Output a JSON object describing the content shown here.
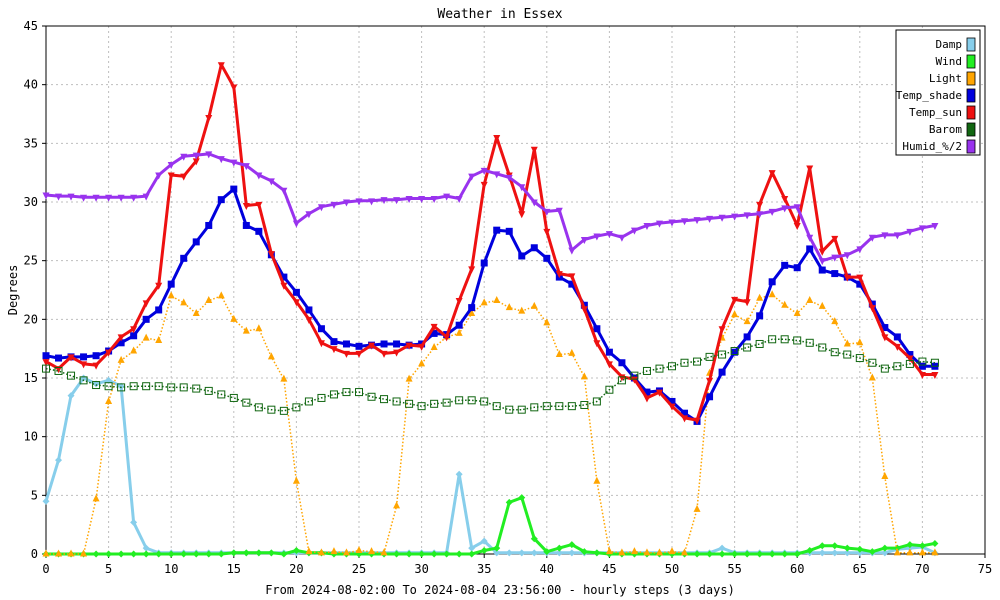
{
  "chart_data": {
    "type": "line",
    "title": "Weather in Essex",
    "xlabel": "From 2024-08-02:00 To 2024-08-04 23:56:00 - hourly steps (3 days)",
    "ylabel": "Degrees",
    "xlim": [
      0,
      75
    ],
    "ylim": [
      0,
      45
    ],
    "xticks": [
      0,
      5,
      10,
      15,
      20,
      25,
      30,
      35,
      40,
      45,
      50,
      55,
      60,
      65,
      70,
      75
    ],
    "yticks": [
      0,
      5,
      10,
      15,
      20,
      25,
      30,
      35,
      40,
      45
    ],
    "grid": true,
    "legend_position": "top-right",
    "series": [
      {
        "name": "Damp",
        "color": "#87ceeb",
        "marker": "diamond",
        "dash": "solid",
        "width": 3,
        "x": [
          0,
          1,
          2,
          3,
          4,
          5,
          6,
          7,
          8,
          9,
          10,
          11,
          12,
          13,
          14,
          15,
          16,
          17,
          18,
          19,
          20,
          21,
          22,
          23,
          24,
          25,
          26,
          27,
          28,
          29,
          30,
          31,
          32,
          33,
          34,
          35,
          36,
          37,
          38,
          39,
          40,
          41,
          42,
          43,
          44,
          45,
          46,
          47,
          48,
          49,
          50,
          51,
          52,
          53,
          54,
          55,
          56,
          57,
          58,
          59,
          60,
          61,
          62,
          63,
          64,
          65,
          66,
          67,
          68,
          69,
          70,
          71
        ],
        "values": [
          4.5,
          8.0,
          13.5,
          15.0,
          14.5,
          14.8,
          14.3,
          2.7,
          0.5,
          0.1,
          0.1,
          0.1,
          0.1,
          0.1,
          0.1,
          0.1,
          0.1,
          0.1,
          0.1,
          0.1,
          0.1,
          0.1,
          0.1,
          0.1,
          0.1,
          0.1,
          0.1,
          0.1,
          0.1,
          0.1,
          0.1,
          0.1,
          0.1,
          6.8,
          0.5,
          1.1,
          0.1,
          0.1,
          0.1,
          0.1,
          0.1,
          0.1,
          0.1,
          0.1,
          0.1,
          0.1,
          0.1,
          0.1,
          0.1,
          0.1,
          0.1,
          0.1,
          0.1,
          0.1,
          0.5,
          0.1,
          0.1,
          0.1,
          0.1,
          0.1,
          0.1,
          0.1,
          0.1,
          0.1,
          0.1,
          0.1,
          0.1,
          0.1,
          0.4,
          0.5,
          0.6,
          0.1
        ]
      },
      {
        "name": "Wind",
        "color": "#22ee22",
        "marker": "diamond",
        "dash": "solid",
        "width": 3,
        "x": [
          0,
          1,
          2,
          3,
          4,
          5,
          6,
          7,
          8,
          9,
          10,
          11,
          12,
          13,
          14,
          15,
          16,
          17,
          18,
          19,
          20,
          21,
          22,
          23,
          24,
          25,
          26,
          27,
          28,
          29,
          30,
          31,
          32,
          33,
          34,
          35,
          36,
          37,
          38,
          39,
          40,
          41,
          42,
          43,
          44,
          45,
          46,
          47,
          48,
          49,
          50,
          51,
          52,
          53,
          54,
          55,
          56,
          57,
          58,
          59,
          60,
          61,
          62,
          63,
          64,
          65,
          66,
          67,
          68,
          69,
          70,
          71
        ],
        "values": [
          0,
          0,
          0,
          0,
          0,
          0,
          0,
          0,
          0,
          0,
          0,
          0,
          0,
          0,
          0,
          0.1,
          0.1,
          0.1,
          0.1,
          0,
          0.3,
          0.1,
          0.1,
          0,
          0,
          0,
          0,
          0,
          0,
          0,
          0,
          0,
          0,
          0,
          0,
          0.3,
          0.5,
          4.4,
          4.8,
          1.3,
          0.2,
          0.5,
          0.8,
          0.2,
          0.1,
          0,
          0,
          0,
          0,
          0,
          0,
          0,
          0,
          0,
          0,
          0,
          0,
          0,
          0,
          0,
          0,
          0.3,
          0.7,
          0.7,
          0.5,
          0.4,
          0.2,
          0.5,
          0.5,
          0.8,
          0.7,
          0.9
        ]
      },
      {
        "name": "Light",
        "color": "#ffa500",
        "marker": "triangle",
        "dash": "dotted",
        "width": 1.5,
        "x": [
          0,
          1,
          2,
          3,
          4,
          5,
          6,
          7,
          8,
          9,
          10,
          11,
          12,
          13,
          14,
          15,
          16,
          17,
          18,
          19,
          20,
          21,
          22,
          23,
          24,
          25,
          26,
          27,
          28,
          29,
          30,
          31,
          32,
          33,
          34,
          35,
          36,
          37,
          38,
          39,
          40,
          41,
          42,
          43,
          44,
          45,
          46,
          47,
          48,
          49,
          50,
          51,
          52,
          53,
          54,
          55,
          56,
          57,
          58,
          59,
          60,
          61,
          62,
          63,
          64,
          65,
          66,
          67,
          68,
          69,
          70,
          71
        ],
        "values": [
          0,
          0,
          0,
          0,
          4.7,
          13.0,
          16.5,
          17.3,
          18.4,
          18.2,
          22.0,
          21.4,
          20.5,
          21.6,
          22.0,
          20.0,
          19.0,
          19.2,
          16.8,
          14.9,
          6.2,
          0.2,
          0.1,
          0.2,
          0.1,
          0.3,
          0.2,
          0.1,
          4.1,
          14.9,
          16.2,
          17.6,
          18.5,
          18.8,
          20.5,
          21.4,
          21.6,
          21.0,
          20.7,
          21.1,
          19.7,
          17.0,
          17.1,
          15.1,
          6.2,
          0.2,
          0.1,
          0.2,
          0.1,
          0.1,
          0.2,
          0.1,
          3.8,
          15.4,
          18.4,
          20.4,
          19.8,
          21.8,
          22.1,
          21.2,
          20.5,
          21.6,
          21.1,
          19.8,
          17.9,
          18.0,
          15.0,
          6.6,
          0.1,
          0.1,
          0.1,
          0.1
        ]
      },
      {
        "name": "Temp_shade",
        "color": "#0000dd",
        "marker": "square",
        "dash": "solid",
        "width": 3,
        "x": [
          0,
          1,
          2,
          3,
          4,
          5,
          6,
          7,
          8,
          9,
          10,
          11,
          12,
          13,
          14,
          15,
          16,
          17,
          18,
          19,
          20,
          21,
          22,
          23,
          24,
          25,
          26,
          27,
          28,
          29,
          30,
          31,
          32,
          33,
          34,
          35,
          36,
          37,
          38,
          39,
          40,
          41,
          42,
          43,
          44,
          45,
          46,
          47,
          48,
          49,
          50,
          51,
          52,
          53,
          54,
          55,
          56,
          57,
          58,
          59,
          60,
          61,
          62,
          63,
          64,
          65,
          66,
          67,
          68,
          69,
          70,
          71
        ],
        "values": [
          16.9,
          16.7,
          16.8,
          16.8,
          16.9,
          17.3,
          18.0,
          18.6,
          20.0,
          20.8,
          23.0,
          25.2,
          26.6,
          28.0,
          30.2,
          31.1,
          28.0,
          27.5,
          25.5,
          23.6,
          22.3,
          20.8,
          19.2,
          18.1,
          17.9,
          17.7,
          17.8,
          17.9,
          17.9,
          17.8,
          17.9,
          18.8,
          18.7,
          19.5,
          21.0,
          24.8,
          27.6,
          27.5,
          25.4,
          26.1,
          25.2,
          23.6,
          23.0,
          21.2,
          19.2,
          17.2,
          16.3,
          15.0,
          13.8,
          13.9,
          13.0,
          12.0,
          11.3,
          13.4,
          15.5,
          17.2,
          18.5,
          20.3,
          23.2,
          24.6,
          24.4,
          26.0,
          24.2,
          23.9,
          23.6,
          23.0,
          21.3,
          19.3,
          18.5,
          17.0,
          16.0,
          16.0
        ]
      },
      {
        "name": "Temp_sun",
        "color": "#ee1111",
        "marker": "triangle-down",
        "dash": "solid",
        "width": 3,
        "x": [
          0,
          1,
          2,
          3,
          4,
          5,
          6,
          7,
          8,
          9,
          10,
          11,
          12,
          13,
          14,
          15,
          16,
          17,
          18,
          19,
          20,
          21,
          22,
          23,
          24,
          25,
          26,
          27,
          28,
          29,
          30,
          31,
          32,
          33,
          34,
          35,
          36,
          37,
          38,
          39,
          40,
          41,
          42,
          43,
          44,
          45,
          46,
          47,
          48,
          49,
          50,
          51,
          52,
          53,
          54,
          55,
          56,
          57,
          58,
          59,
          60,
          61,
          62,
          63,
          64,
          65,
          66,
          67,
          68,
          69,
          70,
          71
        ],
        "values": [
          16.4,
          15.8,
          16.8,
          16.2,
          16.1,
          17.2,
          18.5,
          19.2,
          21.4,
          22.9,
          32.3,
          32.2,
          33.5,
          37.2,
          41.7,
          39.8,
          29.7,
          29.8,
          25.6,
          22.9,
          21.5,
          20.0,
          18.0,
          17.5,
          17.1,
          17.1,
          17.8,
          17.1,
          17.2,
          17.8,
          17.7,
          19.4,
          18.5,
          21.6,
          24.3,
          31.5,
          35.5,
          32.3,
          29.0,
          34.5,
          27.5,
          23.9,
          23.7,
          20.9,
          18.0,
          16.2,
          15.1,
          14.9,
          13.3,
          13.8,
          12.6,
          11.6,
          11.4,
          14.8,
          19.2,
          21.7,
          21.5,
          29.8,
          32.5,
          30.3,
          28.0,
          32.9,
          25.8,
          26.9,
          23.6,
          23.6,
          21.0,
          18.5,
          17.7,
          16.7,
          15.3,
          15.3
        ]
      },
      {
        "name": "Barom",
        "color": "#116611",
        "marker": "square-open",
        "dash": "dotted",
        "width": 1.5,
        "x": [
          0,
          1,
          2,
          3,
          4,
          5,
          6,
          7,
          8,
          9,
          10,
          11,
          12,
          13,
          14,
          15,
          16,
          17,
          18,
          19,
          20,
          21,
          22,
          23,
          24,
          25,
          26,
          27,
          28,
          29,
          30,
          31,
          32,
          33,
          34,
          35,
          36,
          37,
          38,
          39,
          40,
          41,
          42,
          43,
          44,
          45,
          46,
          47,
          48,
          49,
          50,
          51,
          52,
          53,
          54,
          55,
          56,
          57,
          58,
          59,
          60,
          61,
          62,
          63,
          64,
          65,
          66,
          67,
          68,
          69,
          70,
          71
        ],
        "values": [
          15.8,
          15.6,
          15.2,
          14.8,
          14.4,
          14.3,
          14.2,
          14.3,
          14.3,
          14.3,
          14.2,
          14.2,
          14.1,
          13.9,
          13.6,
          13.3,
          12.9,
          12.5,
          12.3,
          12.2,
          12.5,
          13.0,
          13.3,
          13.6,
          13.8,
          13.8,
          13.4,
          13.2,
          13.0,
          12.8,
          12.6,
          12.8,
          12.9,
          13.1,
          13.1,
          13.0,
          12.6,
          12.3,
          12.3,
          12.5,
          12.6,
          12.6,
          12.6,
          12.7,
          13.0,
          14.0,
          14.8,
          15.2,
          15.6,
          15.8,
          16.0,
          16.3,
          16.4,
          16.8,
          17.0,
          17.3,
          17.6,
          17.9,
          18.3,
          18.3,
          18.2,
          18.0,
          17.6,
          17.2,
          17.0,
          16.7,
          16.3,
          15.8,
          16.0,
          16.2,
          16.4,
          16.3
        ]
      },
      {
        "name": "Humid_%/2",
        "color": "#9933ee",
        "marker": "triangle-down",
        "dash": "solid",
        "width": 3,
        "x": [
          0,
          1,
          2,
          3,
          4,
          5,
          6,
          7,
          8,
          9,
          10,
          11,
          12,
          13,
          14,
          15,
          16,
          17,
          18,
          19,
          20,
          21,
          22,
          23,
          24,
          25,
          26,
          27,
          28,
          29,
          30,
          31,
          32,
          33,
          34,
          35,
          36,
          37,
          38,
          39,
          40,
          41,
          42,
          43,
          44,
          45,
          46,
          47,
          48,
          49,
          50,
          51,
          52,
          53,
          54,
          55,
          56,
          57,
          58,
          59,
          60,
          61,
          62,
          63,
          64,
          65,
          66,
          67,
          68,
          69,
          70,
          71
        ],
        "values": [
          30.6,
          30.5,
          30.5,
          30.4,
          30.4,
          30.4,
          30.4,
          30.4,
          30.5,
          32.3,
          33.2,
          33.9,
          34.0,
          34.1,
          33.7,
          33.4,
          33.1,
          32.3,
          31.8,
          31.0,
          28.2,
          29.0,
          29.6,
          29.8,
          30.0,
          30.1,
          30.1,
          30.2,
          30.2,
          30.3,
          30.3,
          30.3,
          30.5,
          30.3,
          32.2,
          32.7,
          32.4,
          32.1,
          31.3,
          30.0,
          29.2,
          29.3,
          25.9,
          26.8,
          27.1,
          27.3,
          27.0,
          27.6,
          28.0,
          28.2,
          28.3,
          28.4,
          28.5,
          28.6,
          28.7,
          28.8,
          28.9,
          29.0,
          29.2,
          29.5,
          29.6,
          27.0,
          25.0,
          25.3,
          25.5,
          26.0,
          27.0,
          27.2,
          27.2,
          27.5,
          27.8,
          28.0
        ]
      }
    ]
  }
}
